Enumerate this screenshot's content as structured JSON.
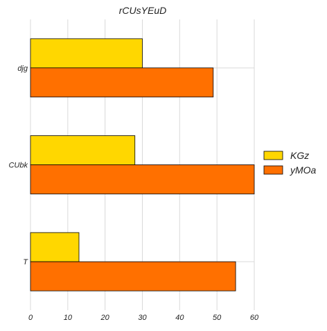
{
  "chart_data": {
    "type": "bar",
    "orientation": "horizontal",
    "title": "rCUsYEuD",
    "xlabel": "",
    "ylabel": "",
    "categories": [
      "djg",
      "CUbk",
      "T"
    ],
    "series": [
      {
        "name": "KGz",
        "color": "#FFD700",
        "values": [
          30,
          28,
          13
        ]
      },
      {
        "name": "yMOa",
        "color": "#FF7000",
        "values": [
          49,
          60,
          55
        ]
      }
    ],
    "xlim": [
      0,
      60
    ],
    "xticks": [
      "0",
      "10",
      "20",
      "30",
      "40",
      "50",
      "60"
    ],
    "grid": true,
    "legend_position": "right"
  }
}
